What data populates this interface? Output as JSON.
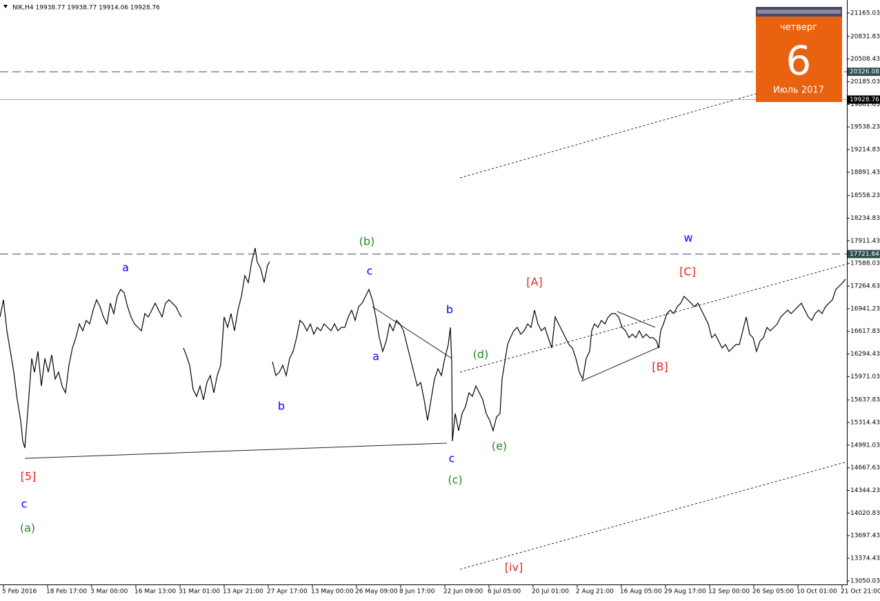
{
  "header": {
    "text": "NIK,H4  19938.77 19938.77 19914.06 19928.76"
  },
  "calendar": {
    "weekday": "четверг",
    "day": "6",
    "month": "Июль 2017"
  },
  "chart_data": {
    "type": "line",
    "color": "#000000",
    "x": [
      0,
      2.5,
      5,
      7.5,
      10,
      12.5,
      15,
      16.5,
      18,
      20,
      21.5,
      23,
      25,
      27.5,
      30,
      32.5,
      35,
      37.5,
      40,
      42.5,
      45,
      47.5,
      50,
      52.5,
      55,
      57.5,
      60,
      62.5,
      65,
      67.5,
      70,
      72.5,
      75,
      77.5,
      80,
      82.5,
      85,
      87.5,
      90,
      92.5,
      95,
      97.5,
      100,
      102.5,
      105,
      107.5,
      110,
      112.5,
      115,
      117.5,
      120,
      122.5,
      125,
      127.5,
      130,
      131.5,
      132.25,
      133,
      135,
      137.5,
      140,
      142.5,
      145,
      147.5,
      150,
      152.5,
      155,
      157.5,
      160,
      162.5,
      165,
      167.5,
      170,
      172.5,
      175,
      177.5,
      180,
      182.5,
      185,
      186.5,
      189,
      191.5,
      194,
      195.5,
      196.5,
      197.5,
      200,
      202.5,
      205,
      207.5,
      210,
      212.5,
      215,
      217.5,
      220,
      222.5,
      225,
      227.5,
      230,
      232.5,
      235,
      237.5,
      240,
      242.5,
      245,
      247.5,
      250,
      252.5,
      255,
      257.5,
      260,
      262.5,
      265,
      267.5,
      270,
      272.5,
      275,
      277.5,
      280,
      282.5,
      285,
      287.5,
      290,
      292.5,
      295,
      297.5,
      300,
      302.5,
      305,
      307.5,
      310,
      312.5,
      315,
      317.5,
      320,
      322.5,
      325,
      326.5,
      327.5,
      328,
      330,
      332.5,
      335,
      337.5,
      340,
      342.5,
      345,
      347.5,
      350,
      352.5,
      355,
      357.5,
      360,
      362.5,
      364,
      366,
      368,
      370,
      372.5,
      375,
      377.5,
      380,
      382.5,
      385,
      387.5,
      390,
      392.5,
      395,
      397.5,
      400,
      402.5,
      405,
      407.5,
      410,
      412.5,
      415,
      417.5,
      420,
      422.5,
      425,
      427.5,
      429,
      431,
      433.5,
      436,
      438.5,
      441,
      443.5,
      446,
      448.5,
      451,
      453.5,
      456,
      458.5,
      461,
      463.5,
      466,
      468.5,
      471,
      473.5,
      476,
      477.5,
      479,
      481,
      483.5,
      486,
      488.5,
      491,
      493.5,
      496,
      498.5,
      501,
      503.5,
      506,
      508.5,
      511,
      513.5,
      516,
      518.5,
      521,
      523.5,
      526,
      528.5,
      531,
      533.5,
      536,
      538.5,
      541,
      543.5,
      546,
      548.5,
      551,
      553.5,
      556,
      558.5,
      561,
      563.5,
      566,
      568.5,
      571,
      573.5,
      576,
      578.5,
      581,
      583.5,
      586,
      588.5,
      591,
      593.5,
      596,
      598.5,
      601,
      603.5,
      606,
      608.5,
      611,
      613
    ],
    "values": [
      16822,
      17068,
      16625,
      16330,
      16034,
      15640,
      15345,
      15049,
      14951,
      15443,
      15837,
      16231,
      16034,
      16330,
      15837,
      16231,
      16034,
      16280,
      15936,
      16034,
      15837,
      15739,
      16133,
      16379,
      16526,
      16723,
      16625,
      16773,
      16723,
      16920,
      17068,
      16970,
      16822,
      16723,
      17019,
      16871,
      17117,
      17216,
      17167,
      16970,
      16822,
      16723,
      16674,
      16625,
      16871,
      16822,
      16920,
      17019,
      16920,
      16822,
      17019,
      17068,
      17019,
      16970,
      16871,
      16822,
      null,
      16379,
      16280,
      16133,
      15788,
      15689,
      15837,
      15640,
      15886,
      15985,
      15739,
      15985,
      16133,
      16822,
      16674,
      16871,
      16625,
      16920,
      17117,
      17413,
      17314,
      17610,
      17807,
      17610,
      17511,
      17314,
      17561,
      17610,
      null,
      16182,
      15985,
      16034,
      16133,
      15985,
      16231,
      16330,
      16526,
      16773,
      16723,
      16625,
      16723,
      16576,
      16674,
      16625,
      16723,
      16674,
      16625,
      16723,
      16625,
      16674,
      16674,
      16822,
      16920,
      16773,
      16970,
      17019,
      17117,
      17216,
      17068,
      16822,
      16526,
      16330,
      16477,
      16723,
      16625,
      16773,
      16723,
      16625,
      16428,
      16231,
      16034,
      15837,
      15886,
      15640,
      15345,
      15640,
      15936,
      16083,
      15985,
      16231,
      16428,
      16674,
      16182,
      15049,
      15443,
      15197,
      15443,
      15542,
      15739,
      15689,
      15837,
      15739,
      15640,
      15443,
      15345,
      15197,
      15394,
      15443,
      15936,
      16182,
      16428,
      16526,
      16625,
      16674,
      16576,
      16625,
      16723,
      16674,
      16920,
      16723,
      16625,
      16674,
      16526,
      16379,
      16822,
      16723,
      16625,
      16526,
      16428,
      16379,
      16231,
      16034,
      15936,
      16231,
      16330,
      16625,
      16723,
      16674,
      16773,
      16723,
      16822,
      16871,
      16871,
      16822,
      16674,
      16625,
      16526,
      16576,
      16526,
      16625,
      16526,
      16576,
      16526,
      16526,
      16477,
      16379,
      16625,
      16723,
      16871,
      16920,
      16871,
      16970,
      17019,
      17117,
      17068,
      17019,
      16970,
      17019,
      16920,
      16822,
      16723,
      16526,
      16576,
      16477,
      16379,
      16428,
      16330,
      16379,
      16428,
      16428,
      16625,
      16822,
      16576,
      16526,
      16330,
      16477,
      16526,
      16674,
      16625,
      16674,
      16723,
      16822,
      16871,
      16920,
      16871,
      16920,
      16970,
      17019,
      16920,
      16822,
      16773,
      16871,
      16920,
      16871,
      16970,
      17019,
      17068,
      17216,
      17265,
      17314,
      17364
    ],
    "xlim": [
      0,
      614
    ],
    "ylim": [
      13000,
      21352
    ],
    "xticks": [
      {
        "value": 2.5,
        "label": "5 Feb 2016"
      },
      {
        "value": 34.5,
        "label": "18 Feb 17:00"
      },
      {
        "value": 66.5,
        "label": "3 Mar 00:00"
      },
      {
        "value": 98.5,
        "label": "16 Mar 13:00"
      },
      {
        "value": 130.5,
        "label": "31 Mar 01:00"
      },
      {
        "value": 162.5,
        "label": "13 Apr 21:00"
      },
      {
        "value": 194.5,
        "label": "27 Apr 17:00"
      },
      {
        "value": 226.5,
        "label": "13 May 00:00"
      },
      {
        "value": 258.5,
        "label": "26 May 09:00"
      },
      {
        "value": 290.5,
        "label": "8 Jun 17:00"
      },
      {
        "value": 322.5,
        "label": "22 Jun 09:00"
      },
      {
        "value": 354.5,
        "label": "6 Jul 05:00"
      },
      {
        "value": 386.5,
        "label": "20 Jul 01:00"
      },
      {
        "value": 418.5,
        "label": "2 Aug 21:00"
      },
      {
        "value": 450.5,
        "label": "16 Aug 05:00"
      },
      {
        "value": 482.5,
        "label": "29 Aug 17:00"
      },
      {
        "value": 514.5,
        "label": "12 Sep 00:00"
      },
      {
        "value": 546.5,
        "label": "26 Sep 05:00"
      },
      {
        "value": 578.5,
        "label": "10 Oct 01:00"
      },
      {
        "value": 610.5,
        "label": "21 Oct 21:00"
      }
    ],
    "yticks": [
      13050.03,
      13374.43,
      13697.43,
      14020.83,
      14344.23,
      14667.63,
      14991.03,
      15314.43,
      15637.83,
      15971.03,
      16294.43,
      16617.83,
      16941.23,
      17264.63,
      17588.03,
      17911.43,
      18234.83,
      18558.23,
      18891.43,
      19214.83,
      19538.23,
      19861.63,
      20185.03,
      20508.43,
      20831.83,
      21165.03
    ],
    "levels": [
      {
        "value": 20326.08,
        "style": "dashed",
        "color": "#2f4f4f"
      },
      {
        "value": 17721.64,
        "style": "dashed",
        "color": "#2f4f4f"
      },
      {
        "value": 19928.76,
        "style": "solid",
        "color": "#a9a9a9"
      }
    ],
    "annotations": [
      {
        "text": "(b)",
        "color": "#1f8a1f"
      },
      {
        "text": "w",
        "color": "#0000ff"
      },
      {
        "text": "a",
        "color": "#0000ff"
      },
      {
        "text": "c",
        "color": "#0000ff"
      },
      {
        "text": "[A]",
        "color": "#e8241c"
      },
      {
        "text": "[C]",
        "color": "#e8241c"
      },
      {
        "text": "b",
        "color": "#0000ff"
      },
      {
        "text": "a",
        "color": "#0000ff"
      },
      {
        "text": "(d)",
        "color": "#1f8a1f"
      },
      {
        "text": "[B]",
        "color": "#e8241c"
      },
      {
        "text": "b",
        "color": "#0000ff"
      },
      {
        "text": "(e)",
        "color": "#1f8a1f"
      },
      {
        "text": "c",
        "color": "#0000ff"
      },
      {
        "text": "(c)",
        "color": "#1f8a1f"
      },
      {
        "text": "[5]",
        "color": "#e8241c"
      },
      {
        "text": "c",
        "color": "#0000ff"
      },
      {
        "text": "(a)",
        "color": "#1f8a1f"
      },
      {
        "text": "[iv]",
        "color": "#e8241c"
      }
    ]
  }
}
